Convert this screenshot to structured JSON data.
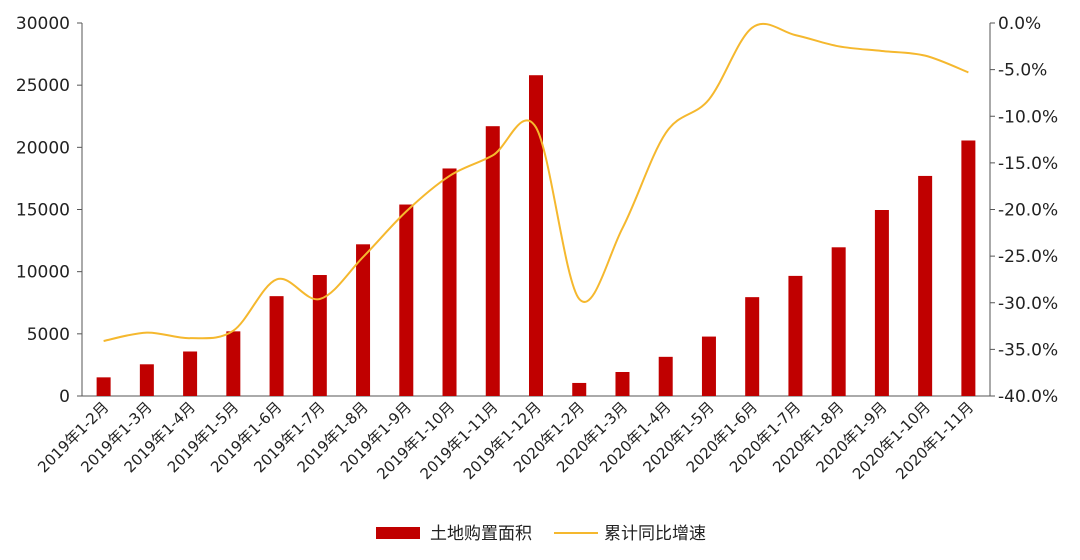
{
  "chart_data": {
    "type": "bar+line",
    "categories": [
      "2019年1-2月",
      "2019年1-3月",
      "2019年1-4月",
      "2019年1-5月",
      "2019年1-6月",
      "2019年1-7月",
      "2019年1-8月",
      "2019年1-9月",
      "2019年1-10月",
      "2019年1-11月",
      "2019年1-12月",
      "2020年1-2月",
      "2020年1-3月",
      "2020年1-4月",
      "2020年1-5月",
      "2020年1-6月",
      "2020年1-7月",
      "2020年1-8月",
      "2020年1-9月",
      "2020年1-10月",
      "2020年1-11月"
    ],
    "series": [
      {
        "name": "土地购置面积",
        "type": "bar",
        "axis": "left",
        "color": "#c00000",
        "values": [
          1500,
          2550,
          3580,
          5200,
          8030,
          9730,
          12200,
          15400,
          18300,
          21700,
          25800,
          1050,
          1930,
          3150,
          4780,
          7950,
          9660,
          11960,
          14960,
          17700,
          20550
        ]
      },
      {
        "name": "累计同比增速",
        "type": "line",
        "axis": "right",
        "color": "#f5b82e",
        "values": [
          -34.1,
          -33.2,
          -33.8,
          -33.0,
          -27.5,
          -29.6,
          -25.1,
          -20.2,
          -16.4,
          -14.2,
          -11.2,
          -29.6,
          -22.0,
          -11.8,
          -8.2,
          -0.5,
          -1.3,
          -2.5,
          -3.0,
          -3.5,
          -5.3
        ]
      }
    ],
    "y_left": {
      "ylim": [
        0,
        30000
      ],
      "ticks": [
        0,
        5000,
        10000,
        15000,
        20000,
        25000,
        30000
      ],
      "tick_labels": [
        "0",
        "5000",
        "10000",
        "15000",
        "20000",
        "25000",
        "30000"
      ]
    },
    "y_right": {
      "ylim": [
        -40,
        0
      ],
      "ticks": [
        -40,
        -35,
        -30,
        -25,
        -20,
        -15,
        -10,
        -5,
        0
      ],
      "tick_labels": [
        "-40.0%",
        "-35.0%",
        "-30.0%",
        "-25.0%",
        "-20.0%",
        "-15.0%",
        "-10.0%",
        "-5.0%",
        "0.0%"
      ]
    },
    "grid": false,
    "legend": {
      "position": "bottom-center",
      "entries": [
        "土地购置面积",
        "累计同比增速"
      ]
    }
  }
}
